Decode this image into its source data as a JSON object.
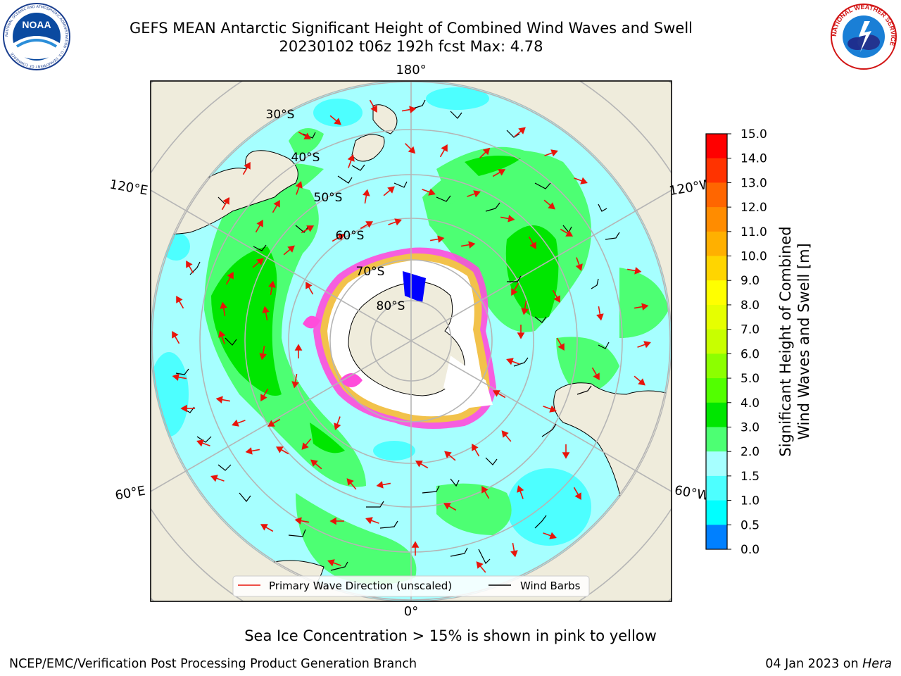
{
  "header": {
    "title": "GEFS MEAN Antarctic Significant Height of Combined Wind Waves and Swell",
    "subtitle": "20230102 t06z 192h fcst   Max: 4.78"
  },
  "logos": {
    "noaa_text": "NOAA",
    "noaa_ring": "NATIONAL OCEANIC AND ATMOSPHERIC ADMINISTRATION · U.S. DEPARTMENT OF COMMERCE",
    "nws_ring": "NATIONAL WEATHER SERVICE"
  },
  "map": {
    "projection": "south-polar-stereographic",
    "longitude_labels": {
      "top": "180°",
      "bottom": "0°",
      "upper_left": "120°E",
      "upper_right": "120°W",
      "lower_left": "60°E",
      "lower_right": "60°W"
    },
    "latitude_labels": [
      "30°S",
      "40°S",
      "50°S",
      "60°S",
      "70°S",
      "80°S"
    ],
    "colors": {
      "land": "#efecdc",
      "coast": "#000000",
      "grid": "#b5b5b5",
      "wave_arrow": "#e8150b",
      "wind_barb": "#000000",
      "ice_pink": "#ff4ddb",
      "ice_yellow": "#f2c24b"
    }
  },
  "legend": {
    "wave": "Primary Wave Direction (unscaled)",
    "wind": "Wind Barbs"
  },
  "colorbar": {
    "label_line1": "Significant Height of Combined",
    "label_line2": "Wind Waves and Swell [m]",
    "ticks": [
      "15.0",
      "14.0",
      "13.0",
      "12.0",
      "11.0",
      "10.0",
      "9.0",
      "8.0",
      "7.0",
      "6.0",
      "5.0",
      "4.0",
      "3.0",
      "2.0",
      "1.5",
      "1.0",
      "0.5",
      "0.0"
    ],
    "colors": [
      "#ff0000",
      "#ff3300",
      "#ff6600",
      "#ff8c00",
      "#ffb000",
      "#ffd500",
      "#ffff00",
      "#e6ff00",
      "#c8ff00",
      "#8cff00",
      "#52ff00",
      "#00e600",
      "#4dff73",
      "#a6ffff",
      "#4dffff",
      "#00ffff",
      "#0080ff",
      "#0000ff"
    ]
  },
  "footer": {
    "note": "Sea Ice Concentration > 15% is shown in pink to yellow",
    "credit_left": "NCEP/EMC/Verification Post Processing Product Generation Branch",
    "credit_date": "04 Jan 2023 on ",
    "credit_host": "Hera"
  }
}
